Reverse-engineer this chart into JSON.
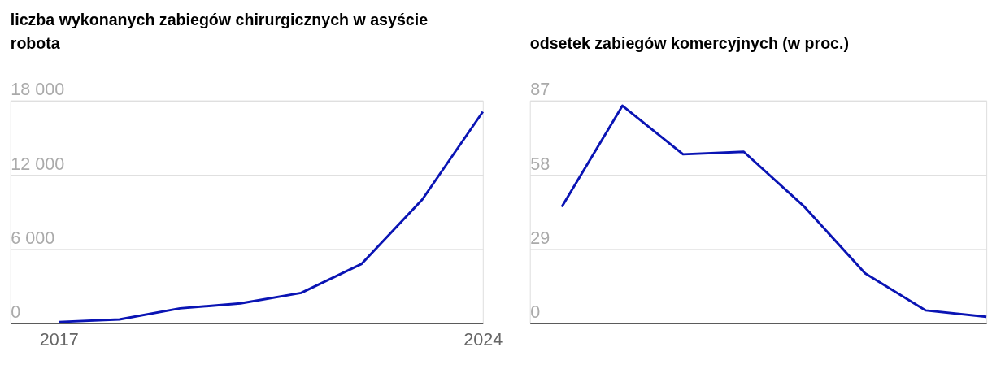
{
  "chart_data": [
    {
      "type": "line",
      "title": "liczba wykonanych zabiegów chirurgicznych w asyście robota",
      "x": [
        2017,
        2018,
        2019,
        2020,
        2021,
        2022,
        2023,
        2024
      ],
      "series": [
        {
          "color": "#0a14b4",
          "values": [
            100,
            300,
            1200,
            1600,
            2450,
            4800,
            10000,
            17100
          ]
        }
      ],
      "xlim": [
        2016.2,
        2024
      ],
      "xticks": [
        2017,
        2024
      ],
      "ylim": [
        0,
        18000
      ],
      "yticks": [
        0,
        {
          "value": 6000,
          "label": "6 000"
        },
        {
          "value": 12000,
          "label": "12 000"
        },
        {
          "value": 18000,
          "label": "18 000"
        }
      ],
      "grid": "y"
    },
    {
      "type": "line",
      "title": "odsetek zabiegów komercyjnych (w proc.)",
      "categories": [
        null,
        null,
        null,
        null,
        null,
        null,
        null,
        null
      ],
      "series": [
        {
          "color": "#0a14b4",
          "values": [
            45.5,
            85,
            66,
            67,
            45.5,
            19.5,
            5,
            2.5
          ]
        }
      ],
      "ylim": [
        0,
        87
      ],
      "yticks": [
        0,
        29,
        58,
        87
      ],
      "grid": "y"
    }
  ]
}
